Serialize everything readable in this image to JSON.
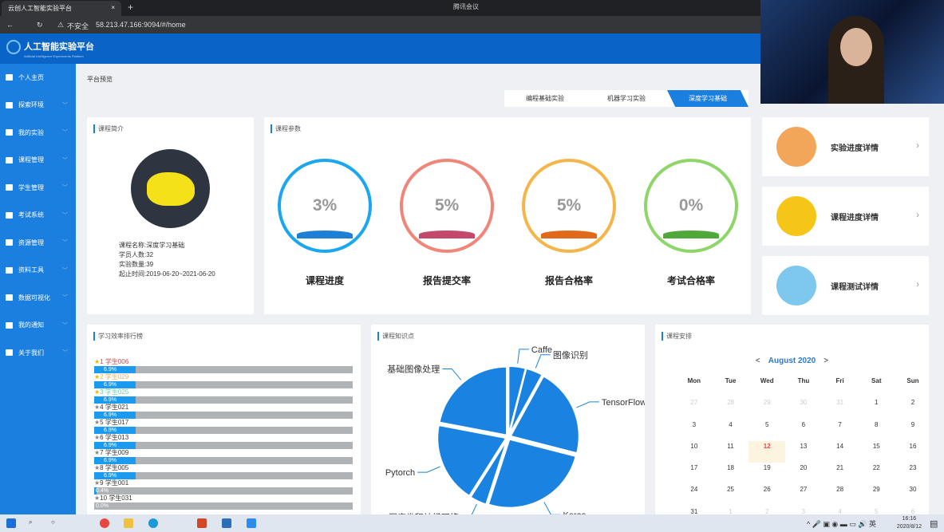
{
  "browser": {
    "tab_title": "云创人工智能实验平台",
    "close": "×",
    "new_tab": "+",
    "meeting": "腾讯会议",
    "security": "不安全",
    "url": "58.213.47.166:9094/#/home"
  },
  "app": {
    "title": "人工智能实验平台",
    "subtitle": "Artificial Intelligence Experiments Platform"
  },
  "sidebar": {
    "items": [
      {
        "label": "个人主页",
        "icon": "monitor-icon",
        "expandable": false
      },
      {
        "label": "探索环境",
        "icon": "cubes-icon",
        "expandable": true
      },
      {
        "label": "我的实验",
        "icon": "grid-icon",
        "expandable": true
      },
      {
        "label": "课程管理",
        "icon": "file-icon",
        "expandable": true
      },
      {
        "label": "学生管理",
        "icon": "users-icon",
        "expandable": true
      },
      {
        "label": "考试系统",
        "icon": "graduation-cap-icon",
        "expandable": true
      },
      {
        "label": "资源管理",
        "icon": "database-icon",
        "expandable": true
      },
      {
        "label": "资料工具",
        "icon": "folder-icon",
        "expandable": true
      },
      {
        "label": "数据可视化",
        "icon": "bank-icon",
        "expandable": true
      },
      {
        "label": "我的通知",
        "icon": "bullhorn-icon",
        "expandable": true
      },
      {
        "label": "关于我们",
        "icon": "paw-icon",
        "expandable": true
      }
    ]
  },
  "breadcrumb": "平台预览",
  "tabs": [
    {
      "label": "编程基础实验",
      "active": false
    },
    {
      "label": "机器学习实验",
      "active": false
    },
    {
      "label": "深度学习基础",
      "active": true
    }
  ],
  "intro": {
    "title": "课程简介",
    "rows": [
      {
        "label": "课程名称:",
        "value": "深度学习基础"
      },
      {
        "label": "学员人数:",
        "value": "32"
      },
      {
        "label": "实验数量:",
        "value": "39"
      },
      {
        "label": "起止时间:",
        "value": "2019-06-20~2021-06-20"
      }
    ]
  },
  "params": {
    "title": "课程参数",
    "items": [
      {
        "label": "课程进度",
        "value": "3%",
        "color": "#1aa7f0",
        "wave": "#1e7fd6"
      },
      {
        "label": "报告提交率",
        "value": "5%",
        "color": "#f0857a",
        "wave": "#c4486a"
      },
      {
        "label": "报告合格率",
        "value": "5%",
        "color": "#f4b54a",
        "wave": "#e06a1a"
      },
      {
        "label": "考试合格率",
        "value": "0%",
        "color": "#8fd66a",
        "wave": "#4ea83a"
      }
    ]
  },
  "quick": [
    {
      "label": "实验进度详情",
      "icon": "chart-board-icon",
      "color": "#f2a65a"
    },
    {
      "label": "课程进度详情",
      "icon": "monitor-chart-icon",
      "color": "#f5c518"
    },
    {
      "label": "课程测试详情",
      "icon": "checklist-icon",
      "color": "#7ec8ee"
    }
  ],
  "ranking": {
    "title": "学习效率排行榜",
    "items": [
      {
        "rank": "1",
        "name": "学生006",
        "value": "6.9%",
        "pct": 6.9,
        "color": "#d9434a",
        "top": true
      },
      {
        "rank": "2",
        "name": "学生029",
        "value": "6.9%",
        "pct": 6.9,
        "color": "#e0b25a",
        "top": true
      },
      {
        "rank": "3",
        "name": "学生025",
        "value": "6.9%",
        "pct": 6.9,
        "color": "#5ed6a0",
        "top": true
      },
      {
        "rank": "4",
        "name": "学生021",
        "value": "6.9%",
        "pct": 6.9,
        "color": "#333",
        "top": false
      },
      {
        "rank": "5",
        "name": "学生017",
        "value": "6.9%",
        "pct": 6.9,
        "color": "#333",
        "top": false
      },
      {
        "rank": "6",
        "name": "学生013",
        "value": "6.9%",
        "pct": 6.9,
        "color": "#333",
        "top": false
      },
      {
        "rank": "7",
        "name": "学生009",
        "value": "6.9%",
        "pct": 6.9,
        "color": "#333",
        "top": false
      },
      {
        "rank": "8",
        "name": "学生005",
        "value": "6.9%",
        "pct": 6.9,
        "color": "#333",
        "top": false
      },
      {
        "rank": "9",
        "name": "学生001",
        "value": "0.4%",
        "pct": 0.4,
        "color": "#333",
        "top": false
      },
      {
        "rank": "10",
        "name": "学生031",
        "value": "0.0%",
        "pct": 0,
        "color": "#333",
        "top": false
      }
    ]
  },
  "knowledge": {
    "title": "课程知识点"
  },
  "chart_data": {
    "type": "pie",
    "color": "#1a82e0",
    "slices": [
      {
        "label": "Caffe",
        "value": 4
      },
      {
        "label": "图像识别",
        "value": 4
      },
      {
        "label": "TensorFlow",
        "value": 21
      },
      {
        "label": "Keras",
        "value": 26
      },
      {
        "label": "深度卷积神经网络",
        "value": 4
      },
      {
        "label": "Pytorch",
        "value": 19
      },
      {
        "label": "基础图像处理",
        "value": 22
      }
    ]
  },
  "calendar": {
    "title": "课程安排",
    "prev": "<",
    "next": ">",
    "month": "August 2020",
    "weekdays": [
      "Mon",
      "Tue",
      "Wed",
      "Thu",
      "Fri",
      "Sat",
      "Sun"
    ],
    "days": [
      [
        "27",
        "o"
      ],
      [
        "28",
        "o"
      ],
      [
        "29",
        "o"
      ],
      [
        "30",
        "o"
      ],
      [
        "31",
        "o"
      ],
      [
        "1",
        ""
      ],
      [
        "2",
        ""
      ],
      [
        "3",
        ""
      ],
      [
        "4",
        ""
      ],
      [
        "5",
        ""
      ],
      [
        "6",
        ""
      ],
      [
        "7",
        ""
      ],
      [
        "8",
        ""
      ],
      [
        "9",
        ""
      ],
      [
        "10",
        ""
      ],
      [
        "11",
        ""
      ],
      [
        "12",
        "td"
      ],
      [
        "13",
        ""
      ],
      [
        "14",
        ""
      ],
      [
        "15",
        ""
      ],
      [
        "16",
        ""
      ],
      [
        "17",
        ""
      ],
      [
        "18",
        ""
      ],
      [
        "19",
        ""
      ],
      [
        "20",
        ""
      ],
      [
        "21",
        ""
      ],
      [
        "22",
        ""
      ],
      [
        "23",
        ""
      ],
      [
        "24",
        ""
      ],
      [
        "25",
        ""
      ],
      [
        "26",
        ""
      ],
      [
        "27",
        ""
      ],
      [
        "28",
        ""
      ],
      [
        "29",
        ""
      ],
      [
        "30",
        ""
      ],
      [
        "31",
        ""
      ],
      [
        "1",
        "o"
      ],
      [
        "2",
        "o"
      ],
      [
        "3",
        "o"
      ],
      [
        "4",
        "o"
      ],
      [
        "5",
        "o"
      ],
      [
        "6",
        "o"
      ]
    ]
  },
  "taskbar": {
    "time": "16:16",
    "date": "2020/8/12",
    "ime": "英"
  }
}
